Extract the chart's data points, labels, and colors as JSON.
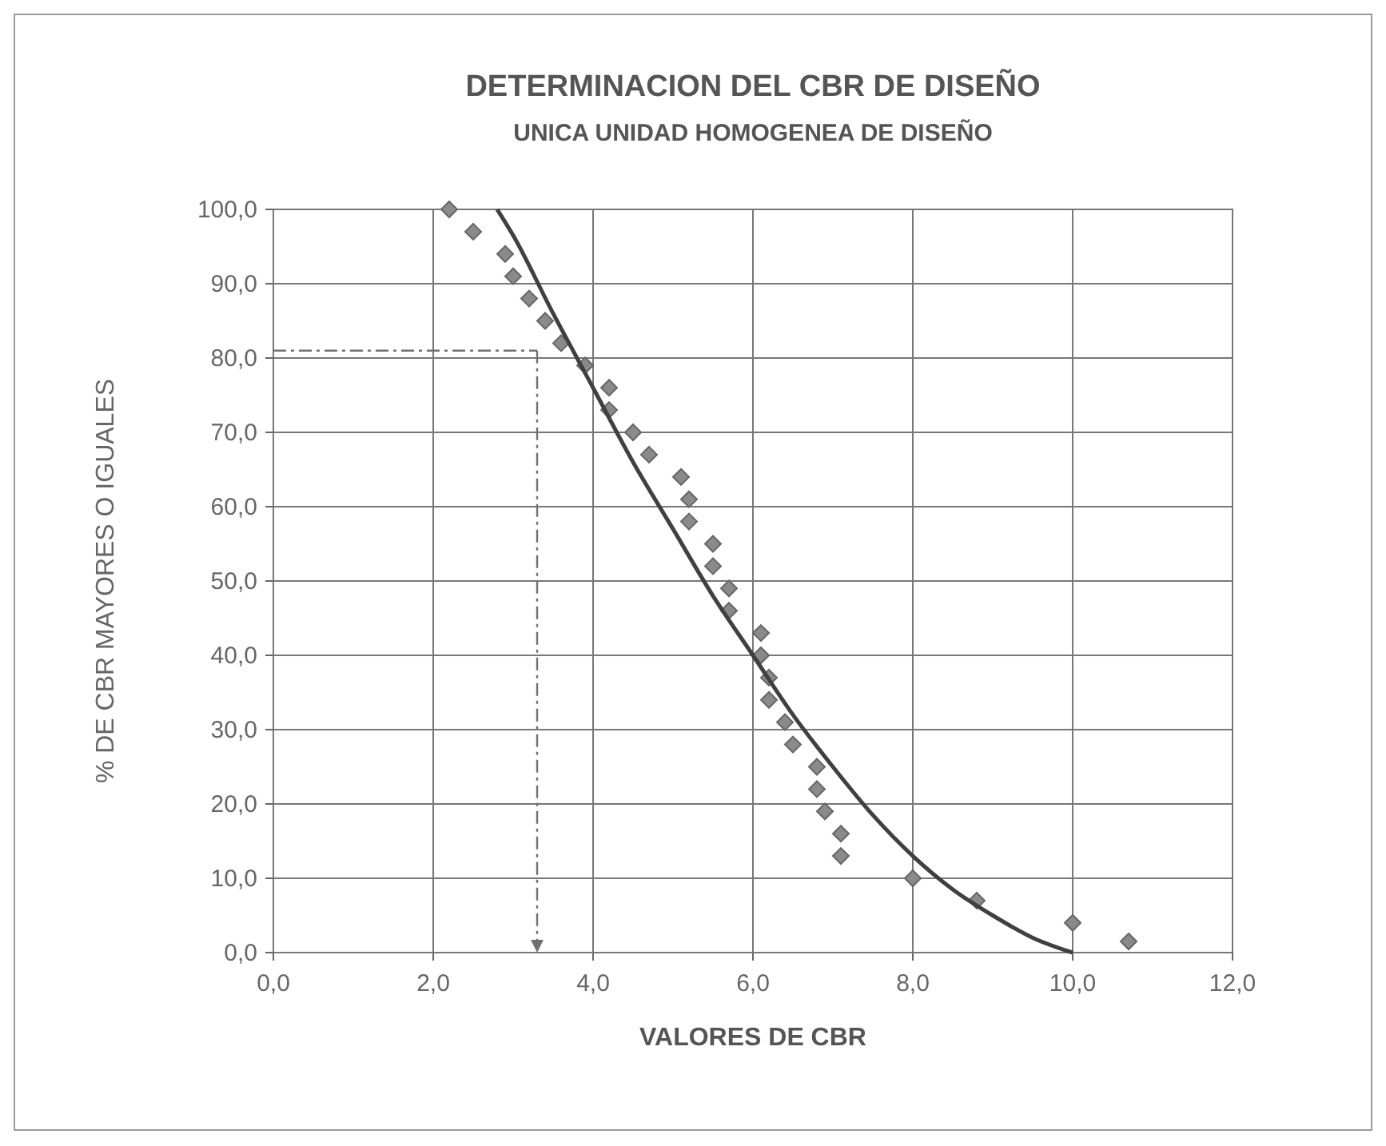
{
  "chart_data": {
    "type": "scatter",
    "title": "DETERMINACION DEL CBR DE DISEÑO",
    "subtitle": "UNICA UNIDAD HOMOGENEA DE DISEÑO",
    "xlabel": "VALORES DE  CBR",
    "ylabel": "% DE CBR  MAYORES O IGUALES",
    "xlim": [
      0,
      12
    ],
    "ylim": [
      0,
      100
    ],
    "xticks": [
      {
        "value": 0,
        "label": "0,0"
      },
      {
        "value": 2,
        "label": "2,0"
      },
      {
        "value": 4,
        "label": "4,0"
      },
      {
        "value": 6,
        "label": "6,0"
      },
      {
        "value": 8,
        "label": "8,0"
      },
      {
        "value": 10,
        "label": "10,0"
      },
      {
        "value": 12,
        "label": "12,0"
      }
    ],
    "yticks": [
      {
        "value": 0,
        "label": "0,0"
      },
      {
        "value": 10,
        "label": "10,0"
      },
      {
        "value": 20,
        "label": "20,0"
      },
      {
        "value": 30,
        "label": "30,0"
      },
      {
        "value": 40,
        "label": "40,0"
      },
      {
        "value": 50,
        "label": "50,0"
      },
      {
        "value": 60,
        "label": "60,0"
      },
      {
        "value": 70,
        "label": "70,0"
      },
      {
        "value": 80,
        "label": "80,0"
      },
      {
        "value": 90,
        "label": "90,0"
      },
      {
        "value": 100,
        "label": "100,0"
      }
    ],
    "grid": true,
    "series": [
      {
        "color": "#8a8a8a",
        "marker": "diamond",
        "x": [
          2.2,
          2.5,
          2.9,
          3.0,
          3.2,
          3.4,
          3.6,
          3.9,
          4.2,
          4.2,
          4.5,
          4.7,
          5.1,
          5.2,
          5.2,
          5.5,
          5.5,
          5.7,
          5.7,
          6.1,
          6.1,
          6.2,
          6.2,
          6.4,
          6.5,
          6.8,
          6.8,
          6.9,
          7.1,
          7.1,
          8.0,
          8.8,
          10.0,
          10.7
        ],
        "values": [
          100,
          97,
          94,
          91,
          88,
          85,
          82,
          79,
          76,
          73,
          70,
          67,
          64,
          61,
          58,
          55,
          52,
          49,
          46,
          43,
          40,
          37,
          34,
          31,
          28,
          25,
          22,
          19,
          16,
          13,
          10,
          7,
          4,
          1.5
        ]
      },
      {
        "type": "line",
        "color": "#404040",
        "marker": "none",
        "line_style": "solid",
        "x": [
          2.8,
          3.0,
          3.5,
          4.0,
          4.5,
          5.0,
          5.5,
          6.0,
          6.5,
          7.0,
          7.5,
          8.0,
          8.5,
          9.0,
          9.5,
          10.0
        ],
        "values": [
          100,
          96.5,
          86,
          76,
          66,
          57,
          48,
          40,
          32,
          25,
          18.5,
          13,
          8.5,
          5,
          2,
          0
        ]
      }
    ],
    "ref_lines": [
      {
        "axis": "y",
        "value": 81,
        "color": "#707070",
        "line_style": "dashed"
      },
      {
        "axis": "x",
        "value": 3.3,
        "color": "#707070",
        "line_style": "dashed"
      }
    ]
  }
}
